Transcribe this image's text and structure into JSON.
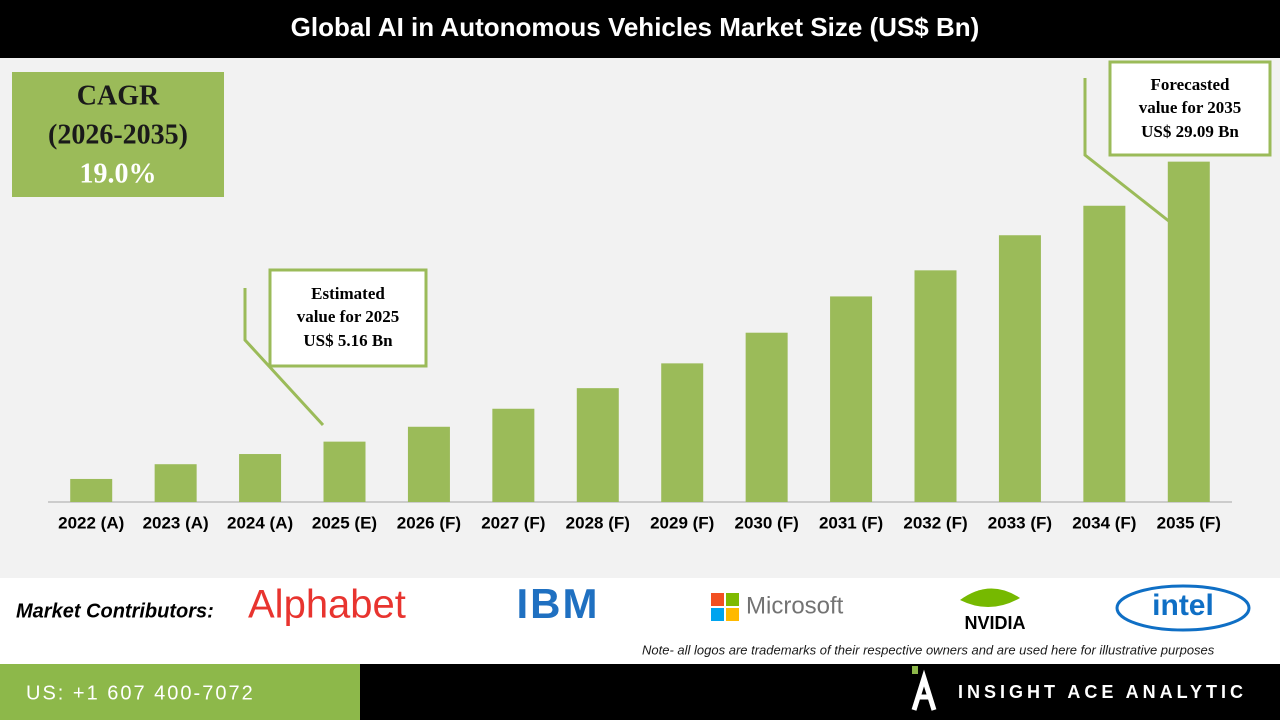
{
  "chart_data": {
    "type": "bar",
    "title": "Global AI in Autonomous Vehicles Market Size (US$ Bn)",
    "categories": [
      "2022 (A)",
      "2023 (A)",
      "2024 (A)",
      "2025 (E)",
      "2026 (F)",
      "2027 (F)",
      "2028 (F)",
      "2029 (F)",
      "2030 (F)",
      "2031 (F)",
      "2032 (F)",
      "2033 (F)",
      "2034 (F)",
      "2035 (F)"
    ],
    "values": [
      1.97,
      3.23,
      4.1,
      5.16,
      6.43,
      7.97,
      9.73,
      11.85,
      14.47,
      17.57,
      19.8,
      22.8,
      25.32,
      29.09
    ],
    "color": "#9bbb59",
    "ylim": [
      0,
      30
    ],
    "annotations": {
      "cagr": [
        "CAGR",
        "(2026-2035)",
        "19.0%"
      ],
      "estimated": [
        "Estimated",
        "value for 2025",
        "US$ 5.16 Bn"
      ],
      "forecasted": [
        "Forecasted",
        "value for 2035",
        "US$ 29.09 Bn"
      ]
    }
  },
  "footer": {
    "contributors_label": "Market Contributors:",
    "logos": [
      "Alphabet",
      "IBM",
      "Microsoft",
      "NVIDIA",
      "intel"
    ],
    "note": "Note- all logos are trademarks of their respective owners and are used here for illustrative purposes",
    "phone": "US: +1 607 400-7072",
    "brand": "INSIGHT ACE ANALYTIC"
  }
}
